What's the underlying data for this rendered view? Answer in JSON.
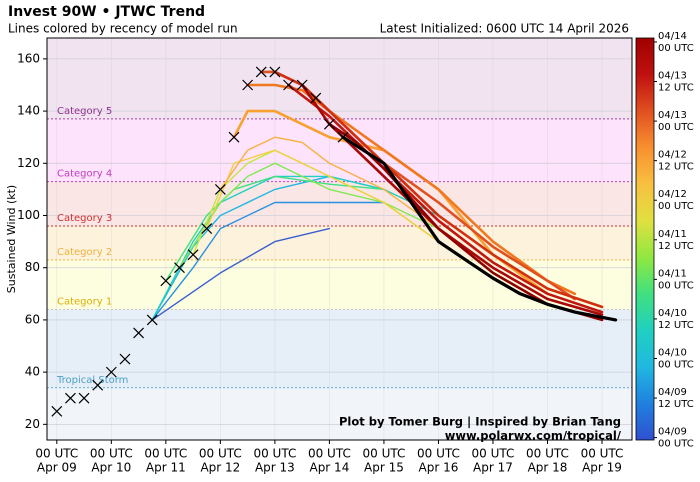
{
  "chart_data": {
    "type": "line",
    "title": "Invest 90W • JTWC Trend",
    "subtitle": "Lines colored by recency of model run",
    "init_note": "Latest Initialized: 0600 UTC 14 April 2026",
    "y_label": "Sustained Wind (kt)",
    "credit": [
      "Plot by Tomer Burg | Inspired by Brian Tang",
      "www.polarwx.com/tropical/"
    ],
    "xlim": [
      -0.18,
      10.55
    ],
    "ylim": [
      14,
      168
    ],
    "yticks": [
      20,
      40,
      60,
      80,
      100,
      120,
      140,
      160
    ],
    "xticks": [
      {
        "value": 0,
        "label": [
          "00 UTC",
          "Apr 09"
        ]
      },
      {
        "value": 1,
        "label": [
          "00 UTC",
          "Apr 10"
        ]
      },
      {
        "value": 2,
        "label": [
          "00 UTC",
          "Apr 11"
        ]
      },
      {
        "value": 3,
        "label": [
          "00 UTC",
          "Apr 12"
        ]
      },
      {
        "value": 4,
        "label": [
          "00 UTC",
          "Apr 13"
        ]
      },
      {
        "value": 5,
        "label": [
          "00 UTC",
          "Apr 14"
        ]
      },
      {
        "value": 6,
        "label": [
          "00 UTC",
          "Apr 15"
        ]
      },
      {
        "value": 7,
        "label": [
          "00 UTC",
          "Apr 16"
        ]
      },
      {
        "value": 8,
        "label": [
          "00 UTC",
          "Apr 17"
        ]
      },
      {
        "value": 9,
        "label": [
          "00 UTC",
          "Apr 18"
        ]
      },
      {
        "value": 10,
        "label": [
          "00 UTC",
          "Apr 19"
        ]
      }
    ],
    "grid": true,
    "base_band_color": "#f1f5fa",
    "bands": [
      {
        "name": "Tropical Storm",
        "lower": 34,
        "fill": "#e6eef7",
        "line": "#5aa8d0"
      },
      {
        "name": "Category 1",
        "lower": 64,
        "fill": "#fdfde0",
        "line": "#c8c8c8"
      },
      {
        "name": "Category 2",
        "lower": 83,
        "fill": "#fdf3dc",
        "line": "#f0b040"
      },
      {
        "name": "Category 3",
        "lower": 96,
        "fill": "#fbe6e6",
        "line": "#d03030"
      },
      {
        "name": "Category 4",
        "lower": 113,
        "fill": "#fde3fb",
        "line": "#c040c0"
      },
      {
        "name": "Category 5",
        "lower": 137,
        "fill": "#f1e3ef",
        "line": "#a040a0"
      }
    ],
    "band_label_colors": [
      "#4aa0c8",
      "#d8b000",
      "#f0b040",
      "#d03030",
      "#c040c0",
      "#903090"
    ],
    "series": [
      {
        "color": "#3a5fd0",
        "x": [
          1.75,
          3,
          4,
          5
        ],
        "values": [
          60,
          78,
          90,
          95
        ]
      },
      {
        "color": "#2a90e0",
        "x": [
          1.75,
          2.5,
          3,
          4,
          5,
          6
        ],
        "values": [
          60,
          80,
          95,
          105,
          105,
          105
        ]
      },
      {
        "color": "#20b8e0",
        "x": [
          1.75,
          2.5,
          3,
          4,
          5,
          6
        ],
        "values": [
          60,
          88,
          100,
          110,
          115,
          110
        ]
      },
      {
        "color": "#20d0c0",
        "x": [
          1.75,
          2.5,
          3,
          3.5,
          4,
          5,
          6,
          7
        ],
        "values": [
          60,
          90,
          105,
          110,
          115,
          115,
          110,
          100
        ]
      },
      {
        "color": "#40e080",
        "x": [
          2,
          2.75,
          3.25,
          4,
          5,
          6
        ],
        "values": [
          75,
          100,
          110,
          115,
          112,
          110
        ]
      },
      {
        "color": "#80e850",
        "x": [
          2.25,
          3,
          3.5,
          4,
          5,
          6,
          7
        ],
        "values": [
          80,
          105,
          115,
          120,
          110,
          105,
          95
        ]
      },
      {
        "color": "#c0e840",
        "x": [
          2.5,
          3,
          3.5,
          4,
          4.5,
          5,
          6,
          7
        ],
        "values": [
          85,
          110,
          120,
          125,
          120,
          115,
          105,
          90
        ]
      },
      {
        "color": "#f0d040",
        "x": [
          2.75,
          3.25,
          4,
          4.5,
          5,
          6,
          7
        ],
        "values": [
          95,
          120,
          125,
          120,
          115,
          105,
          90
        ]
      },
      {
        "color": "#f8b040",
        "x": [
          3,
          3.5,
          4,
          4.5,
          5,
          6,
          7,
          8
        ],
        "values": [
          110,
          125,
          130,
          128,
          120,
          110,
          95,
          80
        ]
      },
      {
        "color": "#f8a030",
        "x": [
          3.25,
          3.5,
          4,
          5,
          6,
          7,
          8,
          9
        ],
        "values": [
          130,
          140,
          140,
          130,
          125,
          110,
          85,
          70
        ]
      },
      {
        "color": "#f07820",
        "x": [
          3.5,
          4,
          4.5,
          5,
          6,
          7,
          8,
          9,
          9.5
        ],
        "values": [
          150,
          150,
          148,
          140,
          125,
          110,
          90,
          75,
          70
        ]
      },
      {
        "color": "#e05020",
        "x": [
          3.75,
          4,
          4.5,
          5,
          6,
          7,
          8,
          9,
          9.5
        ],
        "values": [
          155,
          155,
          150,
          140,
          120,
          105,
          88,
          75,
          68
        ]
      },
      {
        "color": "#d03010",
        "x": [
          4,
          4.5,
          5,
          6,
          7,
          8,
          9,
          10
        ],
        "values": [
          155,
          150,
          140,
          120,
          100,
          85,
          72,
          65
        ]
      },
      {
        "color": "#c01810",
        "x": [
          4.25,
          5,
          6,
          7,
          8,
          9,
          10
        ],
        "values": [
          150,
          138,
          118,
          98,
          82,
          70,
          63
        ]
      },
      {
        "color": "#a80808",
        "x": [
          4.5,
          5,
          6,
          7,
          8,
          9,
          10
        ],
        "values": [
          150,
          135,
          115,
          95,
          80,
          68,
          62
        ]
      },
      {
        "color": "#900000",
        "x": [
          5,
          5.5,
          6,
          7,
          8,
          9,
          10
        ],
        "values": [
          135,
          128,
          118,
          95,
          78,
          66,
          60
        ]
      },
      {
        "color": "#000000",
        "x": [
          5.25,
          6,
          6.5,
          7,
          7.5,
          8,
          8.5,
          9,
          9.5,
          10,
          10.25
        ],
        "values": [
          130,
          120,
          105,
          90,
          83,
          76,
          70,
          66,
          63,
          61,
          60
        ]
      }
    ],
    "best_track": {
      "color": "#000000",
      "x": [
        0,
        0.25,
        0.5,
        0.75,
        1,
        1.25,
        1.5,
        1.75,
        2,
        2.25,
        2.5,
        2.75,
        3,
        3.25,
        3.5,
        3.75,
        4,
        4.25,
        4.5,
        4.75,
        5,
        5.25
      ],
      "values": [
        25,
        30,
        30,
        35,
        40,
        45,
        55,
        60,
        75,
        80,
        85,
        95,
        110,
        130,
        150,
        155,
        155,
        150,
        150,
        145,
        135,
        130
      ]
    },
    "colorbar": {
      "lim": [
        -0.03,
        5.05
      ],
      "colors": [
        "#3050d0",
        "#2080e0",
        "#20b8e0",
        "#20d0c0",
        "#40e080",
        "#90e840",
        "#e0e040",
        "#f8c040",
        "#f89030",
        "#e05020",
        "#c01010",
        "#a00000"
      ],
      "ticks": [
        {
          "value": 0,
          "label": [
            "04/09",
            "00 UTC"
          ]
        },
        {
          "value": 0.5,
          "label": [
            "04/09",
            "12 UTC"
          ]
        },
        {
          "value": 1,
          "label": [
            "04/10",
            "00 UTC"
          ]
        },
        {
          "value": 1.5,
          "label": [
            "04/10",
            "12 UTC"
          ]
        },
        {
          "value": 2,
          "label": [
            "04/11",
            "00 UTC"
          ]
        },
        {
          "value": 2.5,
          "label": [
            "04/11",
            "12 UTC"
          ]
        },
        {
          "value": 3,
          "label": [
            "04/12",
            "00 UTC"
          ]
        },
        {
          "value": 3.5,
          "label": [
            "04/12",
            "12 UTC"
          ]
        },
        {
          "value": 4,
          "label": [
            "04/13",
            "00 UTC"
          ]
        },
        {
          "value": 4.5,
          "label": [
            "04/13",
            "12 UTC"
          ]
        },
        {
          "value": 5,
          "label": [
            "04/14",
            "00 UTC"
          ]
        }
      ]
    }
  }
}
